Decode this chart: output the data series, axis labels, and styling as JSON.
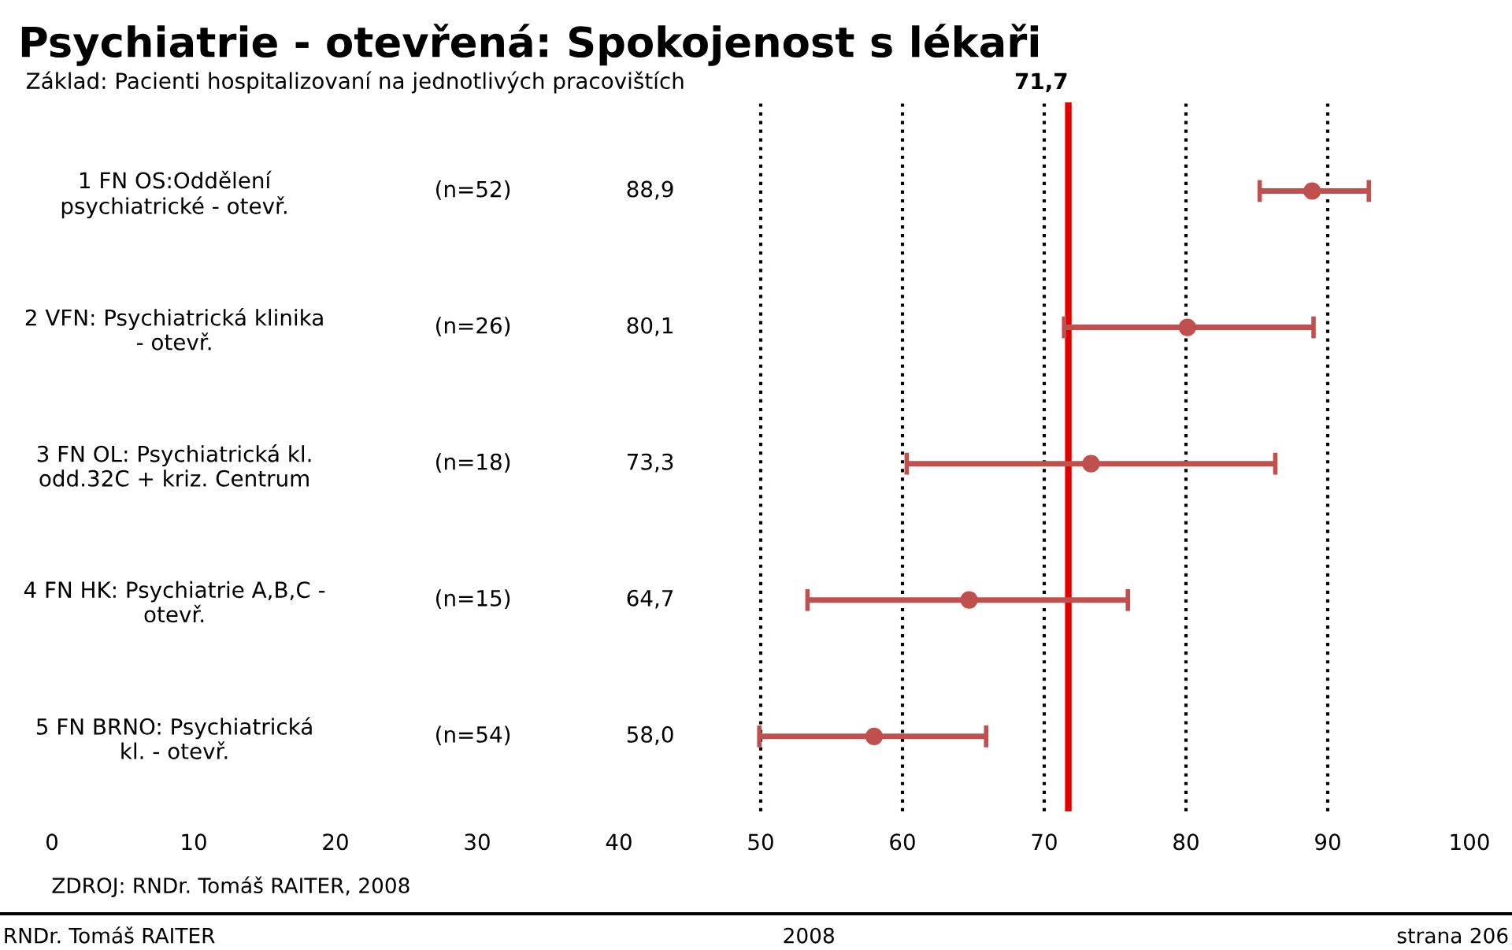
{
  "chart_data": {
    "type": "scatter",
    "orientation": "horizontal",
    "title": "Psychiatrie - otevřená: Spokojenost s lékaři",
    "subtitle": "Základ: Pacienti hospitalizovaní na jednotlivých pracovištích",
    "categories": [
      "1 FN OS:Oddělení\npsychiatrické - otevř.",
      "2 VFN: Psychiatrická klinika\n- otevř.",
      "3 FN OL: Psychiatrická kl.\nodd.32C + kriz. Centrum",
      "4 FN HK: Psychiatrie A,B,C -\notevř.",
      "5 FN BRNO: Psychiatrická\nkl. - otevř."
    ],
    "series": [
      {
        "color": "#c0504d",
        "values": [
          88.9,
          80.1,
          73.3,
          64.7,
          58.0
        ],
        "errors": [
          [
            85.2,
            92.9
          ],
          [
            71.4,
            89.0
          ],
          [
            60.3,
            86.3
          ],
          [
            53.3,
            75.9
          ],
          [
            49.9,
            65.9
          ]
        ]
      }
    ],
    "marker": "circle",
    "xlim": [
      0,
      100
    ],
    "xticks": [
      0,
      10,
      20,
      30,
      40,
      50,
      60,
      70,
      80,
      90,
      100
    ],
    "grid": false,
    "ref_lines": [
      {
        "axis": "x",
        "value": 50,
        "color": "#000000",
        "line_style": "dotted"
      },
      {
        "axis": "x",
        "value": 60,
        "color": "#000000",
        "line_style": "dotted"
      },
      {
        "axis": "x",
        "value": 70,
        "color": "#000000",
        "line_style": "dotted"
      },
      {
        "axis": "x",
        "value": 80,
        "color": "#000000",
        "line_style": "dotted"
      },
      {
        "axis": "x",
        "value": 90,
        "color": "#000000",
        "line_style": "dotted"
      },
      {
        "axis": "x",
        "value": 71.7,
        "label": "71,7",
        "color": "#e00000",
        "line_style": "solid"
      }
    ],
    "annotations": [
      "(n=52)",
      "(n=26)",
      "(n=18)",
      "(n=15)",
      "(n=54)",
      "88,9",
      "80,1",
      "73,3",
      "64,7",
      "58,0",
      "ZDROJ: RNDr. Tomáš RAITER, 2008",
      "RNDr. Tomáš RAITER",
      "2008",
      "strana 206"
    ]
  }
}
